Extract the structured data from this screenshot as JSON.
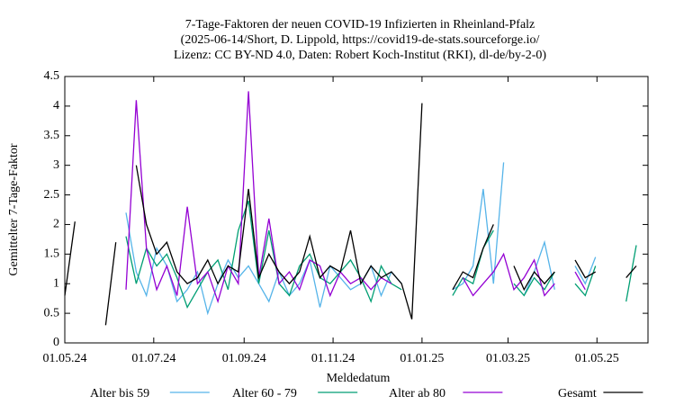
{
  "chart_data": {
    "type": "line",
    "title": [
      "7-Tage-Faktoren der neuen COVID-19 Infizierten in Rheinland-Pfalz",
      "(2025-06-14/Short, D. Lippold, https://covid19-de-stats.sourceforge.io/",
      "Lizenz: CC BY-ND 4.0, Daten: Robert Koch-Institut (RKI), dl-de/by-2-0)"
    ],
    "xlabel": "Meldedatum",
    "ylabel": "Gemittelter 7-Tage-Faktor",
    "x": [
      "2024-05-01",
      "2024-05-08",
      "2024-05-15",
      "2024-05-22",
      "2024-05-29",
      "2024-06-05",
      "2024-06-12",
      "2024-06-19",
      "2024-06-26",
      "2024-07-03",
      "2024-07-10",
      "2024-07-17",
      "2024-07-24",
      "2024-07-31",
      "2024-08-07",
      "2024-08-14",
      "2024-08-21",
      "2024-08-28",
      "2024-09-04",
      "2024-09-11",
      "2024-09-18",
      "2024-09-25",
      "2024-10-02",
      "2024-10-09",
      "2024-10-16",
      "2024-10-23",
      "2024-10-30",
      "2024-11-06",
      "2024-11-13",
      "2024-11-20",
      "2024-11-27",
      "2024-12-04",
      "2024-12-11",
      "2024-12-18",
      "2024-12-25",
      "2025-01-01",
      "2025-01-08",
      "2025-01-15",
      "2025-01-22",
      "2025-01-29",
      "2025-02-05",
      "2025-02-12",
      "2025-02-19",
      "2025-02-26",
      "2025-03-05",
      "2025-03-12",
      "2025-03-19",
      "2025-03-26",
      "2025-04-02",
      "2025-04-09",
      "2025-04-16",
      "2025-04-23",
      "2025-04-30",
      "2025-05-07",
      "2025-05-14",
      "2025-05-21",
      "2025-05-28",
      "2025-06-04"
    ],
    "xlim": [
      "2024-05-01",
      "2025-06-05"
    ],
    "xticks": [
      {
        "value": "2024-05-01",
        "label": "01.05.24"
      },
      {
        "value": "2024-07-01",
        "label": "01.07.24"
      },
      {
        "value": "2024-09-01",
        "label": "01.09.24"
      },
      {
        "value": "2024-11-01",
        "label": "01.11.24"
      },
      {
        "value": "2025-01-01",
        "label": "01.01.25"
      },
      {
        "value": "2025-03-01",
        "label": "01.03.25"
      },
      {
        "value": "2025-05-01",
        "label": "01.05.25"
      }
    ],
    "ylim": [
      0,
      4.5
    ],
    "yticks": [
      0,
      0.5,
      1,
      1.5,
      2,
      2.5,
      3,
      3.5,
      4,
      4.5
    ],
    "series": [
      {
        "name": "Alter bis 59",
        "color": "#56b4e9",
        "values": [
          null,
          null,
          null,
          null,
          null,
          null,
          2.2,
          1.2,
          0.8,
          1.6,
          1.3,
          0.7,
          0.9,
          1.2,
          0.5,
          1.0,
          1.4,
          1.1,
          1.3,
          1.0,
          0.7,
          1.2,
          0.8,
          1.0,
          1.4,
          0.6,
          1.3,
          1.1,
          0.9,
          1.0,
          1.3,
          0.8,
          1.2,
          1.0,
          null,
          null,
          null,
          null,
          0.9,
          1.0,
          1.3,
          2.6,
          1.0,
          3.05,
          null,
          0.8,
          1.2,
          1.7,
          0.9,
          null,
          1.3,
          1.0,
          1.45,
          null,
          null,
          null,
          null,
          null
        ]
      },
      {
        "name": "Alter 60 - 79",
        "color": "#009e73",
        "values": [
          null,
          null,
          null,
          null,
          null,
          null,
          1.8,
          1.0,
          1.6,
          1.3,
          1.5,
          1.1,
          0.6,
          0.9,
          1.2,
          1.4,
          0.9,
          1.9,
          2.4,
          1.0,
          1.9,
          1.0,
          0.8,
          1.3,
          1.5,
          1.1,
          1.0,
          1.2,
          1.4,
          1.1,
          0.7,
          1.3,
          1.0,
          0.9,
          null,
          null,
          null,
          null,
          0.8,
          1.1,
          1.0,
          1.6,
          1.9,
          null,
          1.0,
          0.8,
          1.1,
          0.9,
          1.2,
          null,
          1.0,
          0.8,
          1.3,
          null,
          null,
          0.7,
          1.65,
          null
        ]
      },
      {
        "name": "Alter ab 80",
        "color": "#9400d3",
        "values": [
          null,
          null,
          null,
          null,
          null,
          null,
          0.9,
          4.1,
          1.6,
          0.9,
          1.3,
          0.8,
          2.3,
          1.0,
          1.2,
          0.7,
          1.3,
          1.0,
          4.25,
          1.1,
          2.1,
          1.0,
          1.2,
          0.9,
          1.4,
          1.3,
          0.8,
          1.2,
          1.0,
          1.1,
          0.9,
          1.1,
          1.0,
          null,
          null,
          null,
          null,
          null,
          null,
          1.1,
          0.8,
          1.0,
          1.2,
          1.5,
          0.9,
          1.1,
          1.4,
          0.8,
          1.0,
          null,
          1.2,
          0.9,
          null,
          null,
          null,
          null,
          null,
          null
        ]
      },
      {
        "name": "Gesamt",
        "color": "#000000",
        "values": [
          0.8,
          2.05,
          null,
          null,
          0.3,
          1.7,
          null,
          3.0,
          2.0,
          1.5,
          1.7,
          1.2,
          1.0,
          1.1,
          1.4,
          1.0,
          1.3,
          1.2,
          2.6,
          1.1,
          1.5,
          1.2,
          1.0,
          1.2,
          1.8,
          1.1,
          1.3,
          1.2,
          1.9,
          1.0,
          1.3,
          1.1,
          1.2,
          1.0,
          0.4,
          4.05,
          null,
          null,
          0.9,
          1.2,
          1.1,
          1.6,
          2.0,
          null,
          1.3,
          0.9,
          1.2,
          1.0,
          1.2,
          null,
          1.4,
          1.1,
          1.2,
          null,
          null,
          1.1,
          1.3,
          null
        ]
      }
    ]
  }
}
